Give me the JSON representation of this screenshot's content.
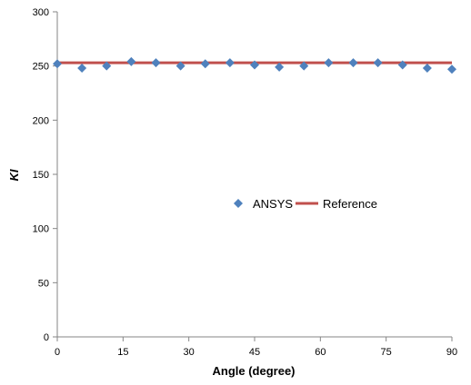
{
  "chart_data": {
    "type": "scatter",
    "title": "",
    "xlabel": "Angle (degree)",
    "ylabel": "KI",
    "xlim": [
      0,
      90
    ],
    "ylim": [
      0,
      300
    ],
    "xticks": [
      0,
      15,
      30,
      45,
      60,
      75,
      90
    ],
    "yticks": [
      0,
      50,
      100,
      150,
      200,
      250,
      300
    ],
    "grid": false,
    "legend_position": "center-right",
    "series": [
      {
        "name": "ANSYS",
        "type": "scatter",
        "marker": "diamond",
        "color": "#4f81bd",
        "x": [
          0,
          5.625,
          11.25,
          16.875,
          22.5,
          28.125,
          33.75,
          39.375,
          45,
          50.625,
          56.25,
          61.875,
          67.5,
          73.125,
          78.75,
          84.375,
          90
        ],
        "y": [
          252,
          248,
          250,
          254,
          253,
          250,
          252,
          253,
          251,
          249,
          250,
          253,
          253,
          253,
          251,
          248,
          247
        ]
      },
      {
        "name": "Reference",
        "type": "line",
        "color": "#c0504d",
        "x": [
          0,
          90
        ],
        "y": [
          253,
          253
        ]
      }
    ]
  }
}
